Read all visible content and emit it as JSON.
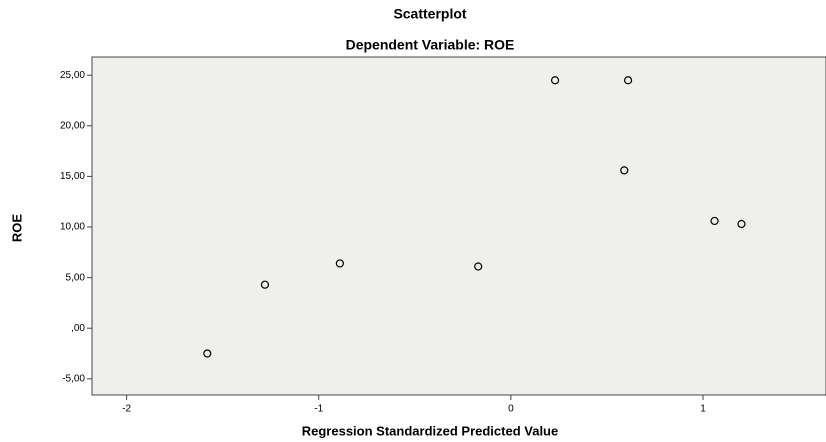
{
  "chart_data": {
    "type": "scatter",
    "title": "Scatterplot",
    "subtitle": "Dependent Variable: ROE",
    "x_label": "Regression Standardized Predicted Value",
    "y_label": "ROE",
    "x": [
      -1.58,
      -1.28,
      -0.89,
      -0.17,
      0.23,
      0.61,
      0.59,
      1.06,
      1.2
    ],
    "values": [
      -2.5,
      4.3,
      6.4,
      6.1,
      24.5,
      24.5,
      15.6,
      10.6,
      10.3
    ],
    "xlim": [
      -2.18,
      1.64
    ],
    "ylim": [
      -6.6,
      26.8
    ],
    "xticks": [
      -2,
      -1,
      0,
      1
    ],
    "yticks": [
      {
        "value": -5,
        "label": "-5,00"
      },
      {
        "value": 0,
        "label": ",00"
      },
      {
        "value": 5,
        "label": "5,00"
      },
      {
        "value": 10,
        "label": "10,00"
      },
      {
        "value": 15,
        "label": "15,00"
      },
      {
        "value": 20,
        "label": "20,00"
      },
      {
        "value": 25,
        "label": "25,00"
      }
    ],
    "color": "#000000"
  }
}
